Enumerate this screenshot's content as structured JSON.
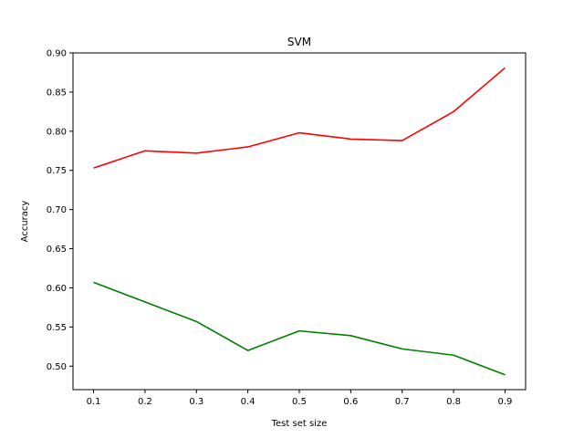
{
  "chart_data": {
    "type": "line",
    "title": "SVM",
    "xlabel": "Test set size",
    "ylabel": "Accuracy",
    "x": [
      0.1,
      0.2,
      0.3,
      0.4,
      0.5,
      0.6,
      0.7,
      0.8,
      0.9
    ],
    "xticks": [
      "0.1",
      "0.2",
      "0.3",
      "0.4",
      "0.5",
      "0.6",
      "0.7",
      "0.8",
      "0.9"
    ],
    "yticks": [
      "0.50",
      "0.55",
      "0.60",
      "0.65",
      "0.70",
      "0.75",
      "0.80",
      "0.85",
      "0.90"
    ],
    "xlim": [
      0.06,
      0.94
    ],
    "ylim": [
      0.47,
      0.9
    ],
    "grid": false,
    "legend": false,
    "series": [
      {
        "color": "#ff0000",
        "values": [
          0.753,
          0.775,
          0.772,
          0.78,
          0.798,
          0.79,
          0.788,
          0.825,
          0.881
        ]
      },
      {
        "color": "#008000",
        "values": [
          0.607,
          0.582,
          0.557,
          0.52,
          0.545,
          0.539,
          0.522,
          0.514,
          0.489
        ]
      }
    ]
  }
}
